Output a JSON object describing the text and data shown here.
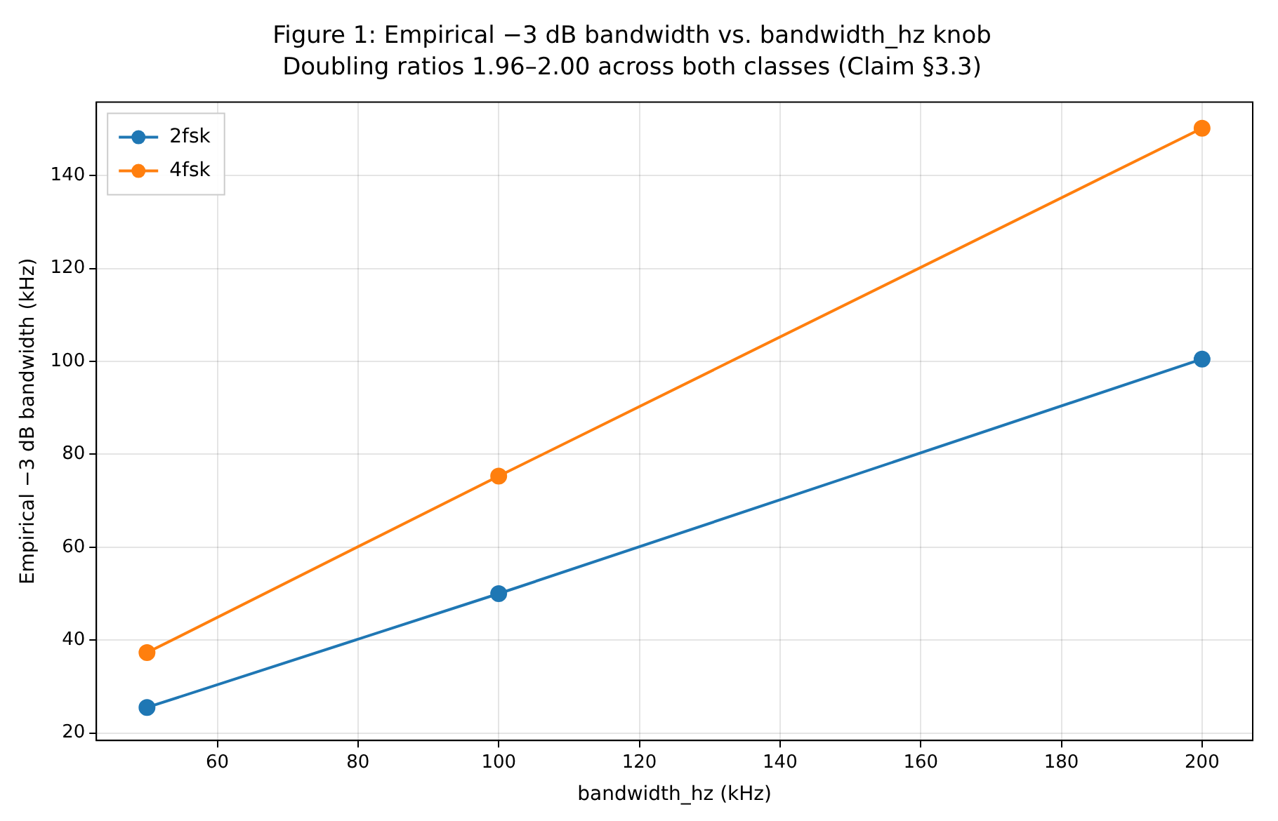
{
  "chart_data": {
    "type": "line",
    "title": "Figure 1: Empirical −3 dB bandwidth vs. bandwidth_hz knob",
    "subtitle": "Doubling ratios 1.96–2.00 across both classes (Claim §3.3)",
    "xlabel": "bandwidth_hz (kHz)",
    "ylabel": "Empirical −3 dB bandwidth (kHz)",
    "x": [
      50,
      100,
      200
    ],
    "series": [
      {
        "name": "2fsk",
        "color": "#1f77b4",
        "values": [
          25.5,
          50,
          100.5
        ]
      },
      {
        "name": "4fsk",
        "color": "#ff7f0e",
        "values": [
          37.3,
          75.3,
          150.2
        ]
      }
    ],
    "xlim": [
      42.8,
      207.2
    ],
    "xticks": [
      60,
      80,
      100,
      120,
      140,
      160,
      180,
      200
    ],
    "ylim": [
      18.4,
      155.8
    ],
    "yticks": [
      20,
      40,
      60,
      80,
      100,
      120,
      140
    ],
    "grid": true,
    "legend": "top left",
    "marker": "circle",
    "line_style": "solid"
  }
}
